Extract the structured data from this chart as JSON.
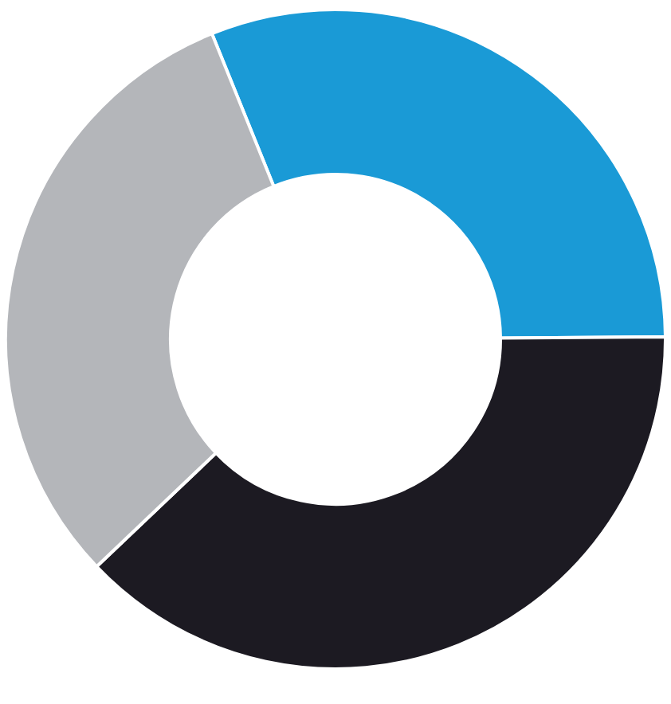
{
  "chart_data": {
    "type": "donut",
    "categories": [
      null,
      null,
      null
    ],
    "values": [
      31,
      38,
      31
    ],
    "colors": [
      "#1a9ad6",
      "#1c1a22",
      "#b4b6ba"
    ]
  }
}
